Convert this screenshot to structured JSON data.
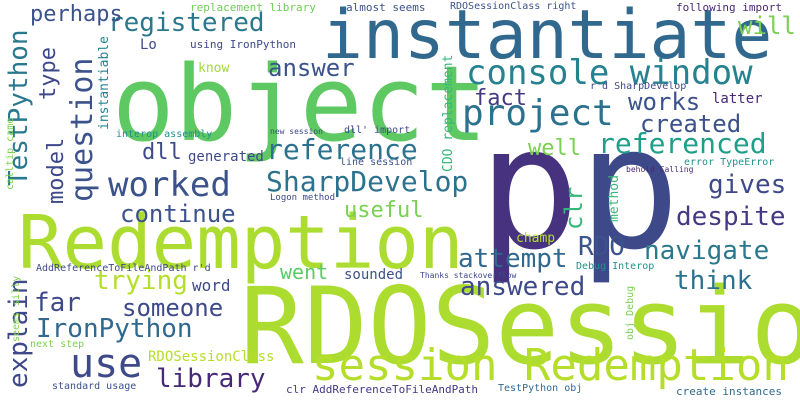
{
  "words": [
    {
      "text": "p",
      "color": "#46327e"
    },
    {
      "text": "p",
      "color": "#3e4989"
    },
    {
      "text": "RDOSession",
      "color": "#addc30"
    },
    {
      "text": "object",
      "color": "#5ec962"
    },
    {
      "text": "instantiate",
      "color": "#31688e"
    },
    {
      "text": "Redemption",
      "color": "#addc30"
    },
    {
      "text": "session Redemption",
      "color": "#b5de2b"
    },
    {
      "text": "console window",
      "color": "#26828e"
    },
    {
      "text": "project",
      "color": "#2c728e"
    },
    {
      "text": "worked",
      "color": "#3b528b"
    },
    {
      "text": "question",
      "color": "#3b528b"
    },
    {
      "text": "TestPython",
      "color": "#2a788e"
    },
    {
      "text": "reference",
      "color": "#2c728e"
    },
    {
      "text": "referenced",
      "color": "#1f9e89"
    },
    {
      "text": "SharpDevelop",
      "color": "#2c728e"
    },
    {
      "text": "registered",
      "color": "#2a788e"
    },
    {
      "text": "answer",
      "color": "#3b528b"
    },
    {
      "text": "use",
      "color": "#3e4989"
    },
    {
      "text": "library",
      "color": "#482878"
    },
    {
      "text": "IronPython",
      "color": "#31688e"
    },
    {
      "text": "continue",
      "color": "#3b528b"
    },
    {
      "text": "navigate",
      "color": "#2a788e"
    },
    {
      "text": "despite",
      "color": "#443983"
    },
    {
      "text": "attempt",
      "color": "#31688e"
    },
    {
      "text": "answered",
      "color": "#3e4989"
    },
    {
      "text": "trying",
      "color": "#b5de2b"
    },
    {
      "text": "think",
      "color": "#2c728e"
    },
    {
      "text": "someone",
      "color": "#3e4989"
    },
    {
      "text": "explain",
      "color": "#3e4989"
    },
    {
      "text": "far",
      "color": "#3e4989"
    },
    {
      "text": "RDO",
      "color": "#3b528b"
    },
    {
      "text": "gives",
      "color": "#3e4989"
    },
    {
      "text": "works",
      "color": "#3b528b"
    },
    {
      "text": "fact",
      "color": "#443983"
    },
    {
      "text": "created",
      "color": "#3b528b"
    },
    {
      "text": "model",
      "color": "#3e4989"
    },
    {
      "text": "type",
      "color": "#3e4989"
    },
    {
      "text": "perhaps",
      "color": "#3b528b"
    },
    {
      "text": "will",
      "color": "#7ad151"
    },
    {
      "text": "well",
      "color": "#7ad151"
    },
    {
      "text": "useful",
      "color": "#7ad151"
    },
    {
      "text": "clr",
      "color": "#35b779"
    },
    {
      "text": "dll",
      "color": "#3e4989"
    },
    {
      "text": "generated",
      "color": "#3e4989"
    },
    {
      "text": "went",
      "color": "#5ec962"
    },
    {
      "text": "word",
      "color": "#3e4989"
    },
    {
      "text": "sounded",
      "color": "#3b528b"
    },
    {
      "text": "RDOSessionClass",
      "color": "#b5de2b"
    },
    {
      "text": "Lo",
      "color": "#3e4989"
    },
    {
      "text": "know",
      "color": "#a0da39"
    },
    {
      "text": "method",
      "color": "#35b779"
    },
    {
      "text": "champ",
      "color": "#b5de2b"
    },
    {
      "text": "latter",
      "color": "#482878"
    },
    {
      "text": "CDO replacement",
      "color": "#35b779"
    },
    {
      "text": "instantiable",
      "color": "#26828e"
    },
    {
      "text": "using IronPython",
      "color": "#3e4989"
    },
    {
      "text": "replacement library",
      "color": "#6ece58"
    },
    {
      "text": "almost seems",
      "color": "#3b528b"
    },
    {
      "text": "RDOSessionClass right",
      "color": "#3b528b"
    },
    {
      "text": "following import",
      "color": "#482878"
    },
    {
      "text": "r'd SharpDevelop",
      "color": "#3e4989"
    },
    {
      "text": "interop assembly",
      "color": "#21918c"
    },
    {
      "text": "new session",
      "color": "#3e4989"
    },
    {
      "text": "dll' import",
      "color": "#3e4989"
    },
    {
      "text": "line session",
      "color": "#3b528b"
    },
    {
      "text": "behold Calling",
      "color": "#482878"
    },
    {
      "text": "error TypeError",
      "color": "#21918c"
    },
    {
      "text": "calltip came",
      "color": "#7ad151"
    },
    {
      "text": "Logon method",
      "color": "#3e4989"
    },
    {
      "text": "seems silly",
      "color": "#7ad151"
    },
    {
      "text": "AddReferenceToFileAndPath r'd",
      "color": "#3e4989"
    },
    {
      "text": "Thanks stackoverflow",
      "color": "#3e4989"
    },
    {
      "text": "Debug Interop",
      "color": "#21918c"
    },
    {
      "text": "obj Debug",
      "color": "#7ad151"
    },
    {
      "text": "next step",
      "color": "#7ad151"
    },
    {
      "text": "standard usage",
      "color": "#3b528b"
    },
    {
      "text": "clr AddReferenceToFileAndPath",
      "color": "#443983"
    },
    {
      "text": "TestPython obj",
      "color": "#31688e"
    },
    {
      "text": "create instances",
      "color": "#31688e"
    }
  ]
}
